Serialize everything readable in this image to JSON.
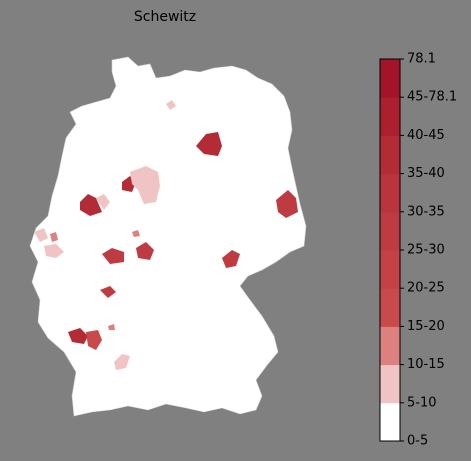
{
  "title": "Schewitz",
  "legend": {
    "labels": [
      "0-5",
      "5-10",
      "10-15",
      "15-20",
      "20-25",
      "25-30",
      "30-35",
      "35-40",
      "40-45",
      "45-78.1",
      "78.1"
    ],
    "colors": [
      "#ffffff",
      "#f0c4c4",
      "#dc8080",
      "#c94a4a",
      "#c44246",
      "#be3b41",
      "#b9343b",
      "#b32b35",
      "#ac1f2f",
      "#a3142a"
    ]
  }
}
